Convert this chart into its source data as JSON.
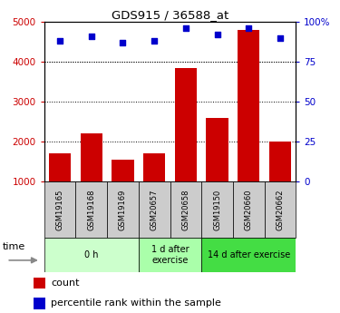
{
  "title": "GDS915 / 36588_at",
  "samples": [
    "GSM19165",
    "GSM19168",
    "GSM19169",
    "GSM20657",
    "GSM20658",
    "GSM19150",
    "GSM20660",
    "GSM20662"
  ],
  "counts": [
    1700,
    2200,
    1550,
    1700,
    3850,
    2600,
    4800,
    2000
  ],
  "percentile_ranks": [
    88,
    91,
    87,
    88,
    96,
    92,
    96,
    90
  ],
  "groups": [
    {
      "label": "0 h",
      "start": 0,
      "end": 3,
      "color": "#ccffcc"
    },
    {
      "label": "1 d after\nexercise",
      "start": 3,
      "end": 5,
      "color": "#aaffaa"
    },
    {
      "label": "14 d after exercise",
      "start": 5,
      "end": 8,
      "color": "#44dd44"
    }
  ],
  "bar_color": "#cc0000",
  "dot_color": "#0000cc",
  "left_axis_color": "#cc0000",
  "right_axis_color": "#0000cc",
  "ylim_left": [
    1000,
    5000
  ],
  "ylim_right": [
    0,
    100
  ],
  "yticks_left": [
    1000,
    2000,
    3000,
    4000,
    5000
  ],
  "yticks_right": [
    0,
    25,
    50,
    75,
    100
  ],
  "grid_values": [
    2000,
    3000,
    4000
  ],
  "legend_count_label": "count",
  "legend_pct_label": "percentile rank within the sample",
  "time_label": "time",
  "bg_color": "#ffffff",
  "tick_label_area_color": "#cccccc"
}
